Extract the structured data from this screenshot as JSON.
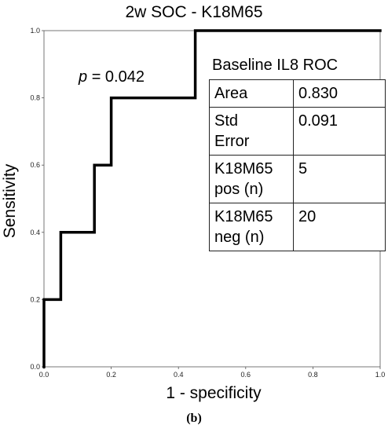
{
  "chart_data": {
    "type": "line",
    "title": "2w SOC - K18M65",
    "xlabel": "1 - specificity",
    "ylabel": "Sensitivity",
    "xlim": [
      0,
      1
    ],
    "ylim": [
      0,
      1
    ],
    "xticks": [
      "0.0",
      "0.2",
      "0.4",
      "0.6",
      "0.8",
      "1.0"
    ],
    "yticks": [
      "0.0",
      "0.2",
      "0.4",
      "0.6",
      "0.8",
      "1.0"
    ],
    "grid": false,
    "series": [
      {
        "x": [
          0,
          0,
          0.05,
          0.05,
          0.15,
          0.15,
          0.2,
          0.2,
          0.45,
          0.45,
          1.0
        ],
        "y": [
          0,
          0.2,
          0.2,
          0.4,
          0.4,
          0.6,
          0.6,
          0.8,
          0.8,
          1.0,
          1.0
        ]
      }
    ],
    "annotation": {
      "p_label": "p",
      "p_value": "= 0.042"
    },
    "stats_table": {
      "heading": "Baseline IL8 ROC",
      "rows": [
        {
          "label": "Area",
          "value": "0.830"
        },
        {
          "label": "Std\nError",
          "value": "0.091"
        },
        {
          "label": "K18M65\npos (n)",
          "value": "5"
        },
        {
          "label": "K18M65\nneg (n)",
          "value": "20"
        }
      ]
    }
  },
  "caption": "(b)"
}
